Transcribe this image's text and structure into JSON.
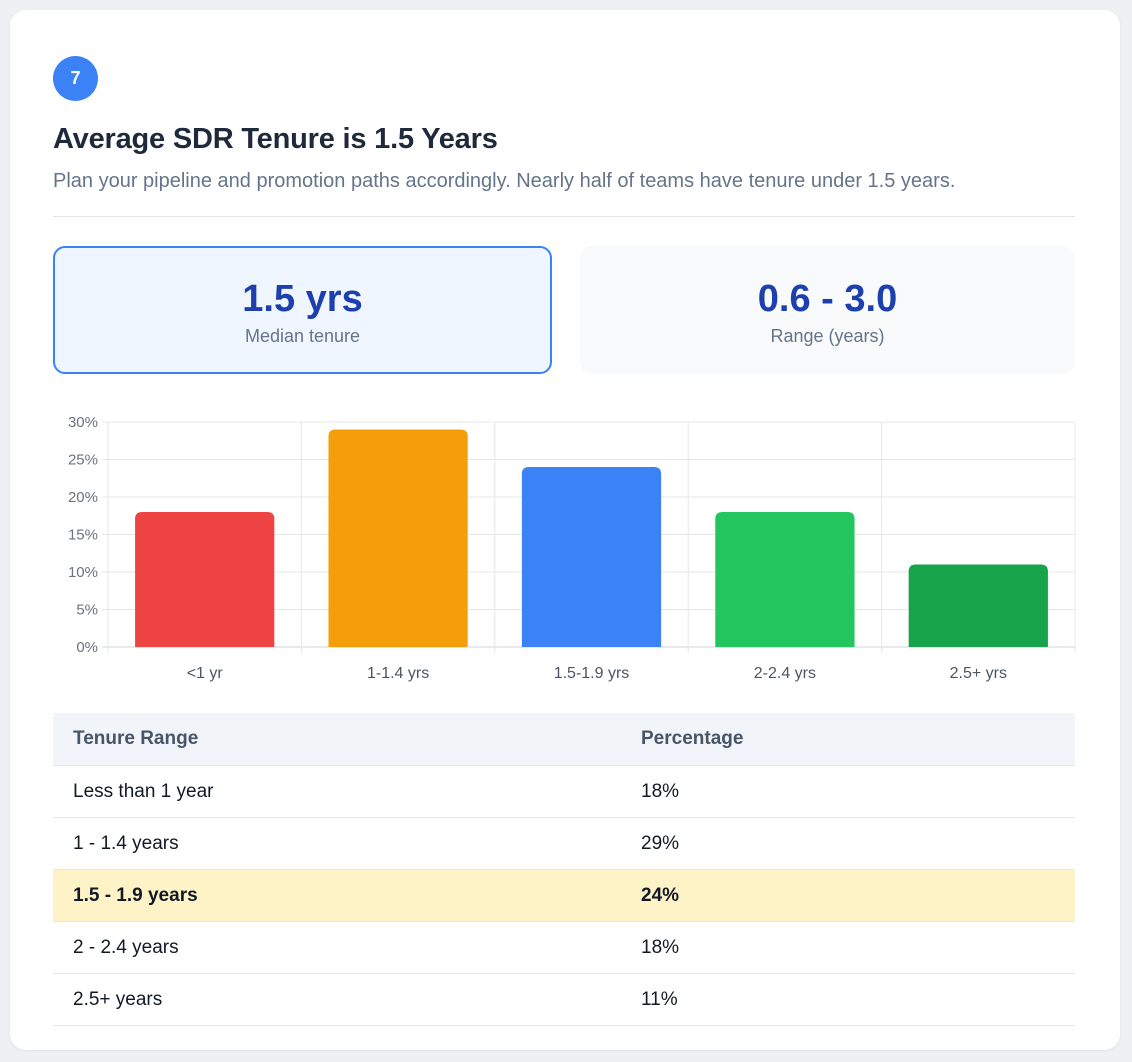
{
  "badge": "7",
  "header": {
    "title": "Average SDR Tenure is 1.5 Years",
    "subtitle": "Plan your pipeline and promotion paths accordingly. Nearly half of teams have tenure under 1.5 years."
  },
  "stats": [
    {
      "value": "1.5 yrs",
      "label": "Median tenure"
    },
    {
      "value": "0.6 - 3.0",
      "label": "Range (years)"
    }
  ],
  "chart_data": {
    "type": "bar",
    "categories": [
      "<1 yr",
      "1-1.4 yrs",
      "1.5-1.9 yrs",
      "2-2.4 yrs",
      "2.5+ yrs"
    ],
    "values": [
      18,
      29,
      24,
      18,
      11
    ],
    "colors": [
      "#ef4444",
      "#f59e0b",
      "#3b82f6",
      "#22c55e",
      "#16a34a"
    ],
    "ylim": [
      0,
      30
    ],
    "yticks": [
      0,
      5,
      10,
      15,
      20,
      25,
      30
    ],
    "ytick_format": "%",
    "grid": true,
    "legend": "none",
    "title": "",
    "xlabel": "",
    "ylabel": ""
  },
  "table": {
    "headers": [
      "Tenure Range",
      "Percentage"
    ],
    "rows": [
      {
        "range": "Less than 1 year",
        "pct": "18%"
      },
      {
        "range": "1 - 1.4 years",
        "pct": "29%"
      },
      {
        "range": "1.5 - 1.9 years",
        "pct": "24%",
        "highlight": true
      },
      {
        "range": "2 - 2.4 years",
        "pct": "18%"
      },
      {
        "range": "2.5+ years",
        "pct": "11%"
      }
    ]
  }
}
